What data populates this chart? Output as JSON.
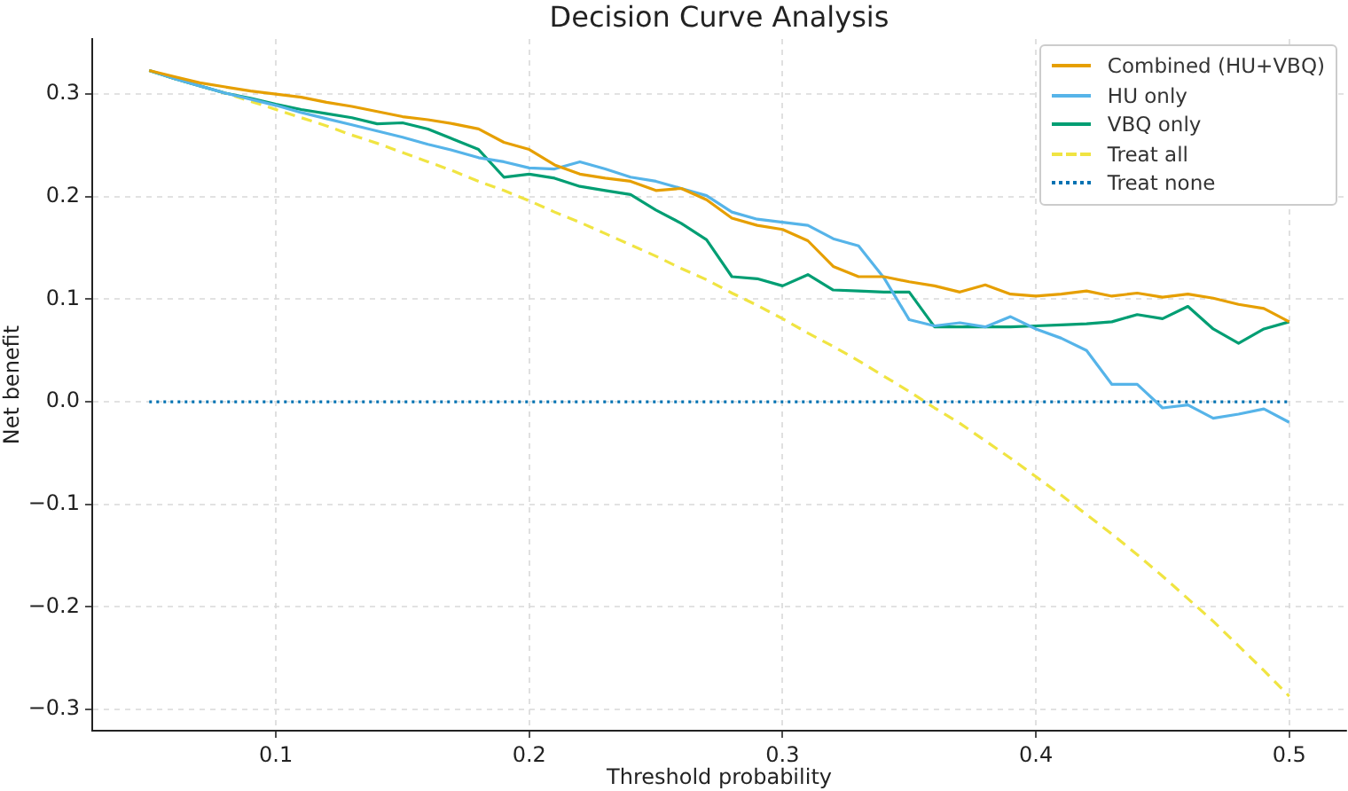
{
  "chart_data": {
    "type": "line",
    "title": "Decision Curve Analysis",
    "xlabel": "Threshold probability",
    "ylabel": "Net benefit",
    "x": [
      0.05,
      0.06,
      0.07,
      0.08,
      0.09,
      0.1,
      0.11,
      0.12,
      0.13,
      0.14,
      0.15,
      0.16,
      0.17,
      0.18,
      0.19,
      0.2,
      0.21,
      0.22,
      0.23,
      0.24,
      0.25,
      0.26,
      0.27,
      0.28,
      0.29,
      0.3,
      0.31,
      0.32,
      0.33,
      0.34,
      0.35,
      0.36,
      0.37,
      0.38,
      0.39,
      0.4,
      0.41,
      0.42,
      0.43,
      0.44,
      0.45,
      0.46,
      0.47,
      0.48,
      0.49,
      0.5
    ],
    "xlim": [
      0.0275,
      0.5225
    ],
    "xticks": [
      0.1,
      0.2,
      0.3,
      0.4,
      0.5
    ],
    "ylim": [
      -0.3207,
      0.3537
    ],
    "yticks": [
      {
        "value": -0.3,
        "label": "−0.3"
      },
      {
        "value": -0.2,
        "label": "−0.2"
      },
      {
        "value": -0.1,
        "label": "−0.1"
      },
      {
        "value": 0,
        "label": "0.0"
      },
      0.1,
      0.2,
      0.3
    ],
    "grid": true,
    "legend": "top right",
    "series": [
      {
        "name": "Combined (HU+VBQ)",
        "color": "#e69f00",
        "line_style": "solid",
        "values": [
          0.323,
          0.317,
          0.311,
          0.307,
          0.303,
          0.3,
          0.297,
          0.292,
          0.288,
          0.283,
          0.278,
          0.275,
          0.271,
          0.266,
          0.253,
          0.246,
          0.231,
          0.222,
          0.218,
          0.215,
          0.206,
          0.208,
          0.197,
          0.179,
          0.172,
          0.168,
          0.157,
          0.132,
          0.122,
          0.122,
          0.117,
          0.113,
          0.107,
          0.114,
          0.105,
          0.103,
          0.105,
          0.108,
          0.103,
          0.106,
          0.102,
          0.105,
          0.101,
          0.095,
          0.091,
          0.078
        ]
      },
      {
        "name": "HU only",
        "color": "#56b4e9",
        "line_style": "solid",
        "values": [
          0.323,
          0.315,
          0.308,
          0.301,
          0.295,
          0.289,
          0.282,
          0.276,
          0.27,
          0.264,
          0.258,
          0.251,
          0.245,
          0.238,
          0.234,
          0.228,
          0.227,
          0.234,
          0.227,
          0.219,
          0.215,
          0.208,
          0.201,
          0.185,
          0.178,
          0.175,
          0.172,
          0.159,
          0.152,
          0.121,
          0.08,
          0.074,
          0.077,
          0.073,
          0.083,
          0.071,
          0.062,
          0.05,
          0.017,
          0.017,
          -0.006,
          -0.003,
          -0.016,
          -0.012,
          -0.007,
          -0.02
        ]
      },
      {
        "name": "VBQ only",
        "color": "#009e73",
        "line_style": "solid",
        "values": [
          0.323,
          0.315,
          0.308,
          0.301,
          0.296,
          0.29,
          0.285,
          0.281,
          0.277,
          0.271,
          0.272,
          0.266,
          0.256,
          0.246,
          0.219,
          0.222,
          0.218,
          0.21,
          0.206,
          0.202,
          0.187,
          0.174,
          0.158,
          0.122,
          0.12,
          0.113,
          0.124,
          0.109,
          0.108,
          0.107,
          0.107,
          0.073,
          0.073,
          0.073,
          0.073,
          0.074,
          0.075,
          0.076,
          0.078,
          0.085,
          0.081,
          0.093,
          0.071,
          0.057,
          0.071,
          0.078
        ]
      },
      {
        "name": "Treat all",
        "color": "#f0e442",
        "line_style": "dashed",
        "values": [
          0.323,
          0.315,
          0.308,
          0.301,
          0.293,
          0.285,
          0.277,
          0.269,
          0.26,
          0.252,
          0.243,
          0.234,
          0.225,
          0.215,
          0.206,
          0.196,
          0.185,
          0.175,
          0.164,
          0.153,
          0.142,
          0.13,
          0.119,
          0.106,
          0.094,
          0.081,
          0.067,
          0.054,
          0.04,
          0.025,
          0.01,
          -0.006,
          -0.021,
          -0.038,
          -0.055,
          -0.073,
          -0.091,
          -0.11,
          -0.129,
          -0.149,
          -0.17,
          -0.192,
          -0.214,
          -0.238,
          -0.262,
          -0.287
        ]
      },
      {
        "name": "Treat none",
        "color": "#0072b2",
        "line_style": "dotted",
        "values": [
          0,
          0,
          0,
          0,
          0,
          0,
          0,
          0,
          0,
          0,
          0,
          0,
          0,
          0,
          0,
          0,
          0,
          0,
          0,
          0,
          0,
          0,
          0,
          0,
          0,
          0,
          0,
          0,
          0,
          0,
          0,
          0,
          0,
          0,
          0,
          0,
          0,
          0,
          0,
          0,
          0,
          0,
          0,
          0,
          0,
          0
        ]
      }
    ]
  }
}
